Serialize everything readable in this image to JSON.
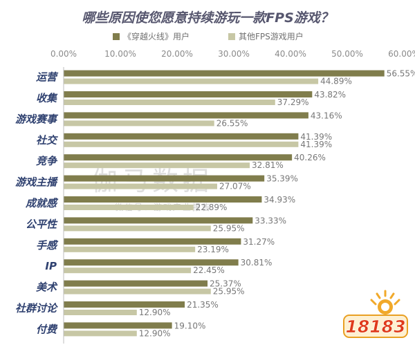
{
  "chart_data": {
    "type": "bar",
    "orientation": "horizontal",
    "title": "哪些原因使您愿意持续游玩一款FPS游戏？",
    "legend_position": "top",
    "xlim": [
      0,
      60
    ],
    "x_ticks": [
      "0.00%",
      "10.00%",
      "20.00%",
      "30.00%",
      "40.00%",
      "50.00%",
      "60.00%"
    ],
    "grid": false,
    "categories": [
      "运营",
      "收集",
      "游戏赛事",
      "社交",
      "竞争",
      "游戏主播",
      "成就感",
      "公平性",
      "手感",
      "IP",
      "美术",
      "社群讨论",
      "付费"
    ],
    "series": [
      {
        "name": "《穿越火线》用户",
        "color": "#807d4c",
        "values": [
          56.55,
          43.82,
          43.16,
          41.39,
          40.26,
          35.39,
          34.93,
          33.33,
          31.27,
          30.81,
          25.37,
          21.35,
          19.1
        ],
        "labels": [
          "56.55%",
          "43.82%",
          "43.16%",
          "41.39%",
          "40.26%",
          "35.39%",
          "34.93%",
          "33.33%",
          "31.27%",
          "30.81%",
          "25.37%",
          "21.35%",
          "19.10%"
        ]
      },
      {
        "name": "其他FPS游戏用户",
        "color": "#c7c7a5",
        "values": [
          44.89,
          37.29,
          26.55,
          41.39,
          32.81,
          27.07,
          22.89,
          25.95,
          23.19,
          22.45,
          25.95,
          12.9,
          12.9
        ],
        "labels": [
          "44.89%",
          "37.29%",
          "26.55%",
          "41.39%",
          "32.81%",
          "27.07%",
          "22.89%",
          "25.95%",
          "23.19%",
          "22.45%",
          "25.95%",
          "12.90%",
          "12.90%"
        ]
      }
    ]
  },
  "watermark": {
    "main": "伽马数据",
    "sub": "微信号：游戏产业报告"
  },
  "logo": {
    "text": "18183"
  }
}
